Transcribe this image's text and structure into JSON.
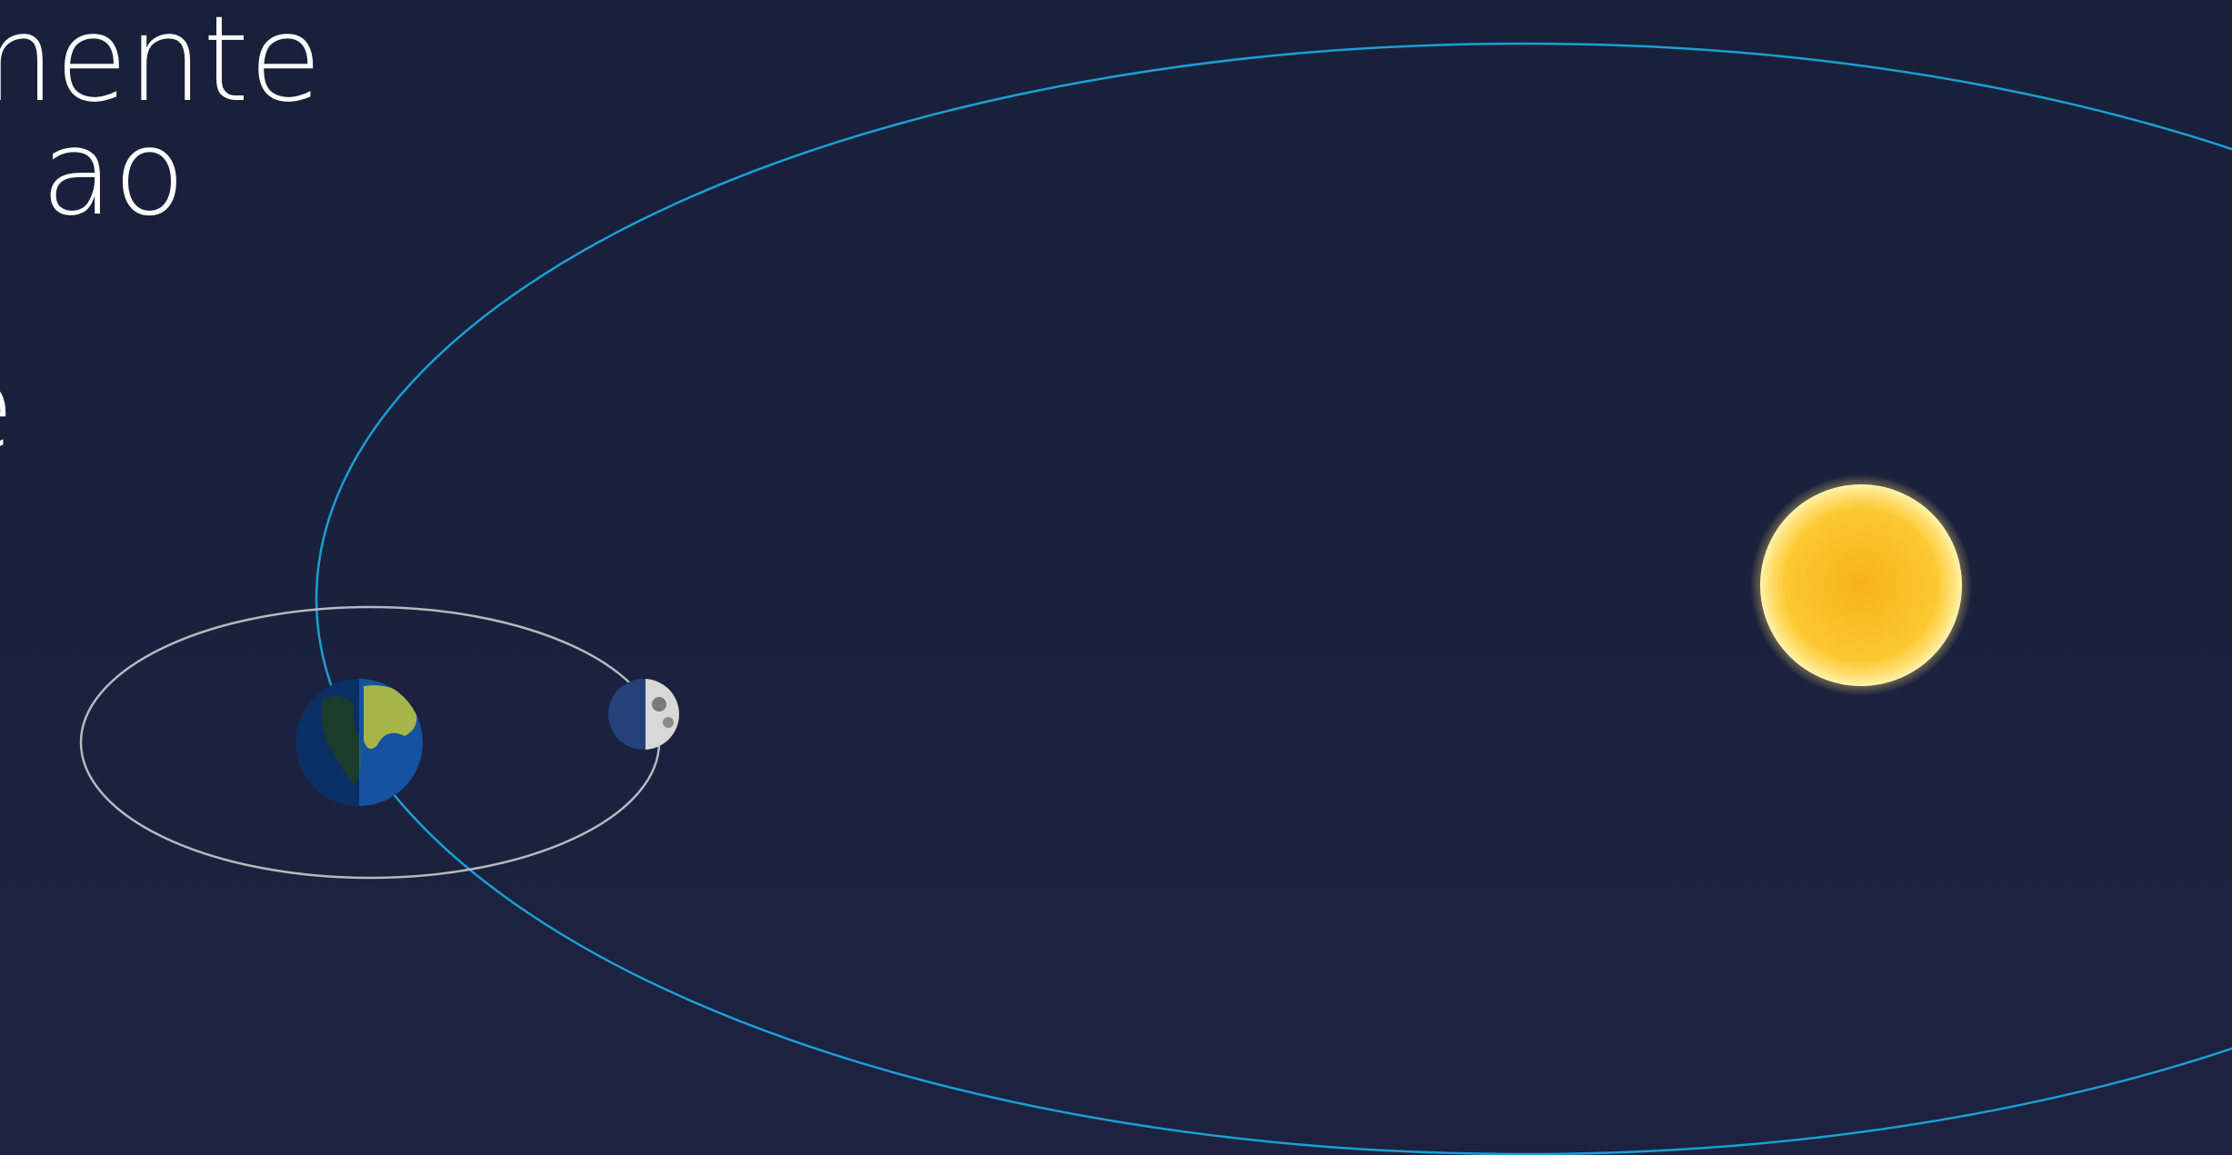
{
  "slide": {
    "text_lines": [
      "temente",
      "ao",
      "e"
    ]
  }
}
